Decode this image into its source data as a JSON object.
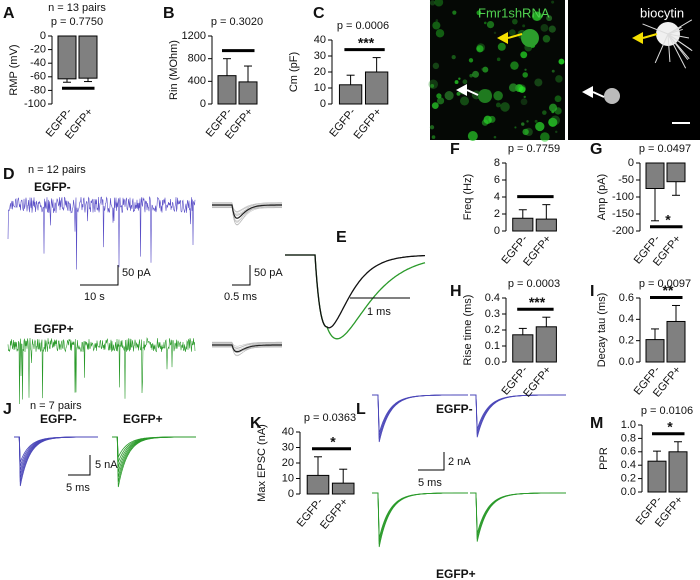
{
  "chart_data": [
    {
      "type": "bar",
      "panel": "A",
      "title": "n = 13 pairs",
      "p_text": "p = 0.7750",
      "ylabel": "RMP (mV)",
      "categories": [
        "EGFP-",
        "EGFP+"
      ],
      "values": [
        -63,
        -62
      ],
      "errors": [
        5,
        5
      ],
      "ylim": [
        -100,
        0
      ],
      "yticks": [
        -100,
        -80,
        -60,
        -40,
        -20,
        0
      ],
      "color": "#808080"
    },
    {
      "type": "bar",
      "panel": "B",
      "p_text": "p = 0.3020",
      "ylabel": "Rin (MOhm)",
      "categories": [
        "EGFP-",
        "EGFP+"
      ],
      "values": [
        500,
        390
      ],
      "errors": [
        300,
        280
      ],
      "ylim": [
        0,
        1200
      ],
      "yticks": [
        0,
        400,
        800,
        1200
      ],
      "color": "#808080"
    },
    {
      "type": "bar",
      "panel": "C",
      "p_text": "p = 0.0006",
      "significance": "***",
      "ylabel": "Cm (pF)",
      "categories": [
        "EGFP-",
        "EGFP+"
      ],
      "values": [
        12,
        20
      ],
      "errors": [
        6,
        9
      ],
      "ylim": [
        0,
        40
      ],
      "yticks": [
        0,
        10,
        20,
        30,
        40
      ],
      "color": "#808080"
    },
    {
      "type": "bar",
      "panel": "F",
      "p_text": "p = 0.7759",
      "ylabel": "Freq (Hz)",
      "categories": [
        "EGFP-",
        "EGFP+"
      ],
      "values": [
        1.5,
        1.4
      ],
      "errors": [
        1.0,
        1.7
      ],
      "ylim": [
        0,
        8
      ],
      "yticks": [
        0,
        2,
        4,
        6,
        8
      ],
      "color": "#808080"
    },
    {
      "type": "bar",
      "panel": "G",
      "p_text": "p = 0.0497",
      "significance": "*",
      "ylabel": "Amp (pA)",
      "categories": [
        "EGFP-",
        "EGFP+"
      ],
      "values": [
        -75,
        -55
      ],
      "errors": [
        95,
        40
      ],
      "ylim": [
        -200,
        0
      ],
      "yticks": [
        -200,
        -150,
        -100,
        -50,
        0
      ],
      "color": "#808080"
    },
    {
      "type": "bar",
      "panel": "H",
      "p_text": "p = 0.0003",
      "significance": "***",
      "ylabel": "Rise time (ms)",
      "categories": [
        "EGFP-",
        "EGFP+"
      ],
      "values": [
        0.17,
        0.22
      ],
      "errors": [
        0.04,
        0.06
      ],
      "ylim": [
        0,
        0.4
      ],
      "yticks": [
        {
          "value": 0,
          "label": "0.0"
        },
        0.1,
        0.2,
        0.3,
        0.4
      ],
      "color": "#808080"
    },
    {
      "type": "bar",
      "panel": "I",
      "p_text": "p = 0.0097",
      "significance": "**",
      "ylabel": "Decay tau (ms)",
      "categories": [
        "EGFP-",
        "EGFP+"
      ],
      "values": [
        0.21,
        0.38
      ],
      "errors": [
        0.1,
        0.15
      ],
      "ylim": [
        0,
        0.6
      ],
      "yticks": [
        {
          "value": 0,
          "label": "0.0"
        },
        0.2,
        0.4,
        0.6
      ],
      "color": "#808080"
    },
    {
      "type": "bar",
      "panel": "K",
      "p_text": "p = 0.0363",
      "significance": "*",
      "ylabel": "Max EPSC (nA)",
      "categories": [
        "EGFP-",
        "EGFP+"
      ],
      "values": [
        12,
        7
      ],
      "errors": [
        12,
        9
      ],
      "ylim": [
        0,
        40
      ],
      "yticks": [
        0,
        10,
        20,
        30,
        40
      ],
      "color": "#808080"
    },
    {
      "type": "bar",
      "panel": "M",
      "p_text": "p = 0.0106",
      "significance": "*",
      "ylabel": "PPR",
      "categories": [
        "EGFP-",
        "EGFP+"
      ],
      "values": [
        0.46,
        0.6
      ],
      "errors": [
        0.15,
        0.15
      ],
      "ylim": [
        0,
        1.0
      ],
      "yticks": [
        {
          "value": 0,
          "label": "0.0"
        },
        0.2,
        0.4,
        0.6,
        0.8,
        {
          "value": 1.0,
          "label": "1.0"
        }
      ],
      "color": "#808080"
    }
  ],
  "panels": {
    "images": {
      "left": "Fmr1shRNA",
      "right": "biocytin"
    },
    "D": {
      "letter": "D",
      "n": "n = 12 pairs",
      "top": "EGFP-",
      "bottom": "EGFP+",
      "scale_y1": "50 pA",
      "scale_x1": "10 s",
      "scale_y2": "50 pA",
      "scale_x2": "0.5 ms"
    },
    "E": {
      "letter": "E",
      "scale_x": "1 ms"
    },
    "J": {
      "letter": "J",
      "n": "n = 7 pairs",
      "left": "EGFP-",
      "right": "EGFP+",
      "scale_y": "5 nA",
      "scale_x": "5 ms"
    },
    "L": {
      "letter": "L",
      "top": "EGFP-",
      "bottom": "EGFP+",
      "scale_y": "2 nA",
      "scale_x": "5 ms"
    }
  }
}
